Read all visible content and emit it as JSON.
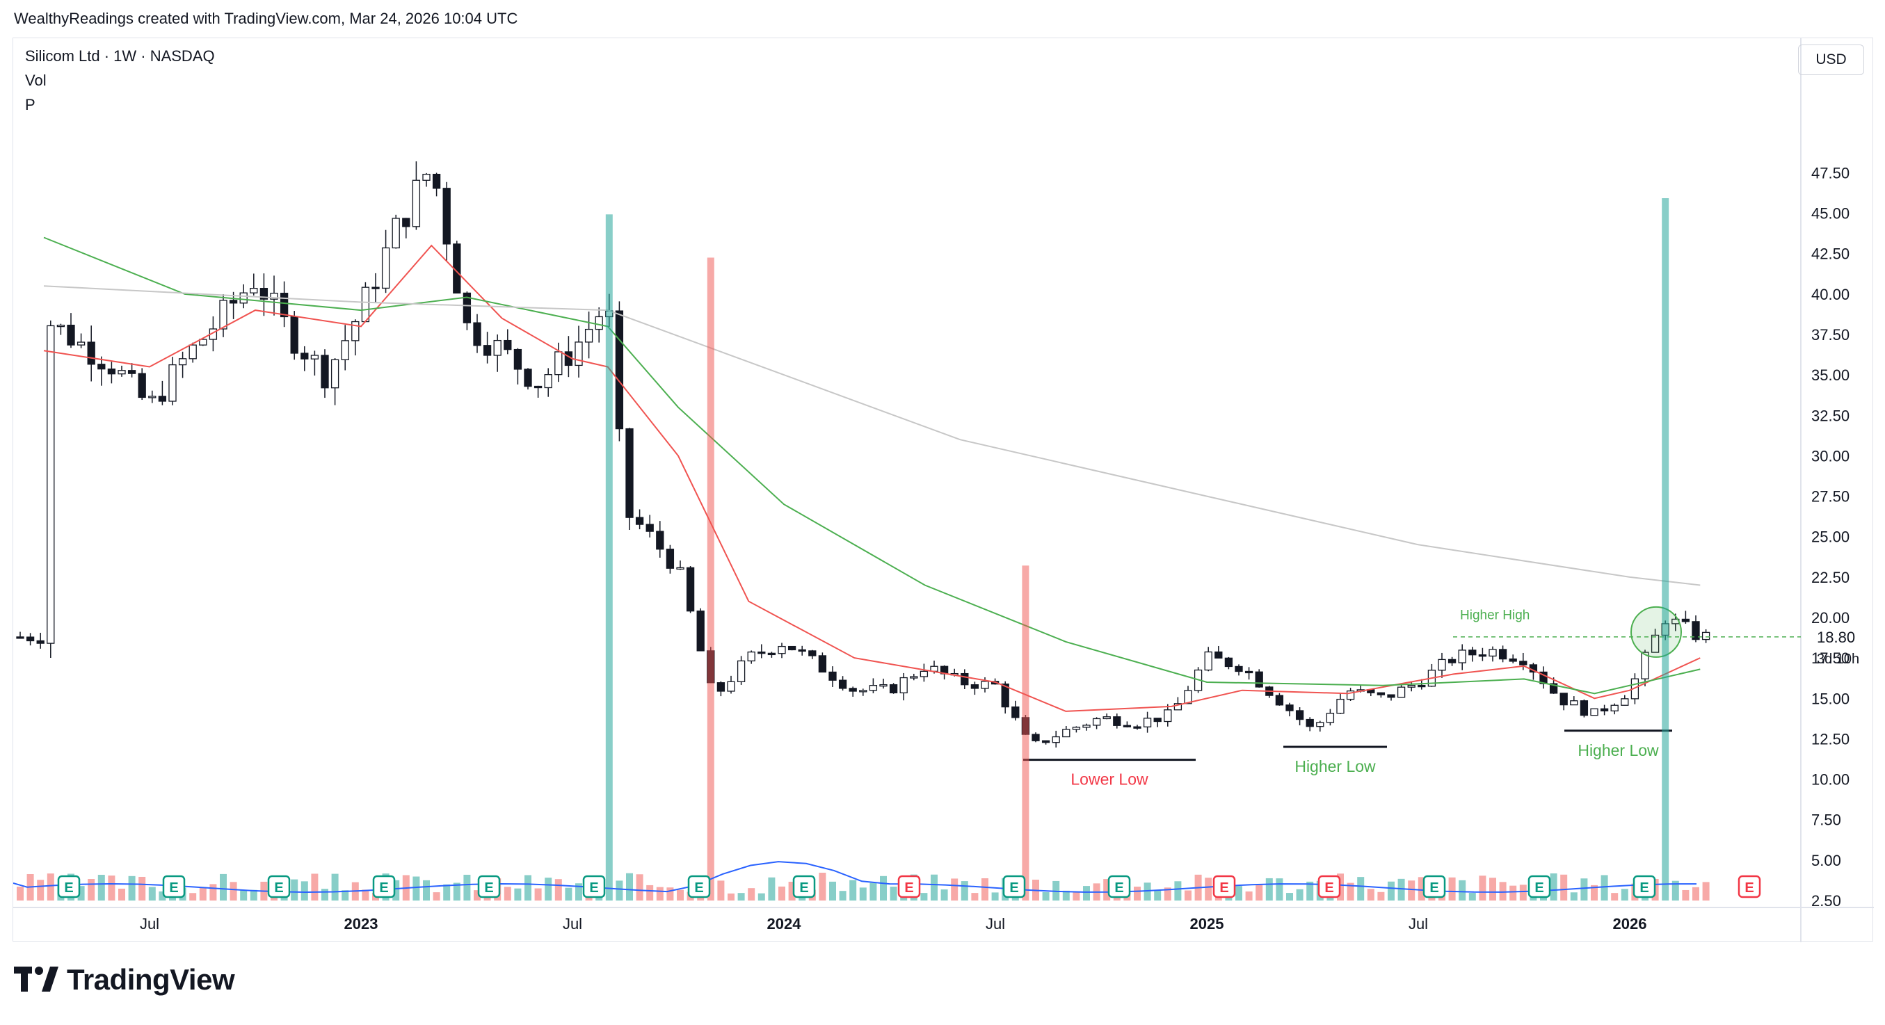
{
  "header": {
    "credit": "WealthyReadings created with TradingView.com, Mar 24, 2026 10:04 UTC"
  },
  "legend": {
    "symbol_line": "Silicom Ltd · 1W · NASDAQ",
    "vol_label": "Vol",
    "p_label": "P"
  },
  "currency": "USD",
  "footer": {
    "brand": "TradingView"
  },
  "colors": {
    "up": "#ffffff",
    "down": "#131722",
    "ema_fast": "#f05350",
    "ema_mid": "#4caf50",
    "ema_slow": "#c7c7c7",
    "vol_up": "#26a69a",
    "vol_down": "#ef5350",
    "vol_ma": "#2962ff",
    "earn_green": "#089981",
    "earn_red": "#f23645",
    "annotation_black": "#131722",
    "annotation_red": "#f23645",
    "annotation_green": "#4caf50"
  },
  "chart_data": {
    "type": "candlestick",
    "title": "Silicom Ltd · 1W · NASDAQ",
    "y_axis": {
      "min": 0,
      "max": 50,
      "ticks": [
        "2.50",
        "5.00",
        "7.50",
        "10.00",
        "12.50",
        "15.00",
        "17.50",
        "20.00",
        "22.50",
        "25.00",
        "27.50",
        "30.00",
        "32.50",
        "35.00",
        "37.50",
        "40.00",
        "42.50",
        "45.00",
        "47.50"
      ]
    },
    "x_axis": {
      "labels": [
        "Jul",
        "2023",
        "Jul",
        "2024",
        "Jul",
        "2025",
        "Jul",
        "2026"
      ],
      "label_dates": [
        "2022-07",
        "2023-01",
        "2023-07",
        "2024-01",
        "2024-07",
        "2025-01",
        "2025-07",
        "2026-01"
      ]
    },
    "last_price": "18.80",
    "countdown": "3d 10h",
    "series": [
      {
        "name": "price_close_path",
        "points": [
          [
            "2022-04",
            38.5
          ],
          [
            "2022-05",
            37.0
          ],
          [
            "2022-06",
            35.5
          ],
          [
            "2022-07",
            33.0
          ],
          [
            "2022-08",
            36.0
          ],
          [
            "2022-09",
            38.5
          ],
          [
            "2022-10",
            41.0
          ],
          [
            "2022-11",
            37.5
          ],
          [
            "2022-12",
            35.0
          ],
          [
            "2023-01",
            39.0
          ],
          [
            "2023-02",
            44.0
          ],
          [
            "2023-03",
            48.0
          ],
          [
            "2023-04",
            38.0
          ],
          [
            "2023-05",
            36.5
          ],
          [
            "2023-06",
            34.5
          ],
          [
            "2023-07",
            36.5
          ],
          [
            "2023-08",
            39.5
          ],
          [
            "2023-08b",
            26.5
          ],
          [
            "2023-09",
            25.5
          ],
          [
            "2023-10",
            23.0
          ],
          [
            "2023-11",
            15.0
          ],
          [
            "2023-12",
            17.5
          ],
          [
            "2024-01",
            18.5
          ],
          [
            "2024-02",
            17.0
          ],
          [
            "2024-03",
            15.5
          ],
          [
            "2024-04",
            15.5
          ],
          [
            "2024-05",
            17.0
          ],
          [
            "2024-06",
            16.0
          ],
          [
            "2024-07",
            15.8
          ],
          [
            "2024-08",
            12.0
          ],
          [
            "2024-09",
            13.0
          ],
          [
            "2024-10",
            13.8
          ],
          [
            "2024-11",
            13.5
          ],
          [
            "2024-12",
            14.0
          ],
          [
            "2025-01",
            17.5
          ],
          [
            "2025-02",
            17.0
          ],
          [
            "2025-03",
            15.0
          ],
          [
            "2025-04",
            13.0
          ],
          [
            "2025-05",
            15.5
          ],
          [
            "2025-06",
            15.0
          ],
          [
            "2025-07",
            16.0
          ],
          [
            "2025-08",
            17.5
          ],
          [
            "2025-09",
            18.0
          ],
          [
            "2025-10",
            17.5
          ],
          [
            "2025-11",
            15.0
          ],
          [
            "2025-12",
            14.0
          ],
          [
            "2026-01",
            15.5
          ],
          [
            "2026-02",
            20.0
          ],
          [
            "2026-03",
            18.8
          ]
        ]
      },
      {
        "name": "ema_fast",
        "points": [
          [
            "2022-04",
            36.5
          ],
          [
            "2022-07",
            35.5
          ],
          [
            "2022-10",
            39.0
          ],
          [
            "2023-01",
            38.0
          ],
          [
            "2023-03",
            43.0
          ],
          [
            "2023-05",
            38.5
          ],
          [
            "2023-07",
            36.0
          ],
          [
            "2023-08",
            35.5
          ],
          [
            "2023-10",
            30.0
          ],
          [
            "2023-12",
            21.0
          ],
          [
            "2024-03",
            17.5
          ],
          [
            "2024-07",
            16.0
          ],
          [
            "2024-09",
            14.2
          ],
          [
            "2024-12",
            14.5
          ],
          [
            "2025-02",
            15.5
          ],
          [
            "2025-05",
            15.3
          ],
          [
            "2025-08",
            16.5
          ],
          [
            "2025-10",
            17.0
          ],
          [
            "2025-12",
            15.0
          ],
          [
            "2026-01",
            15.5
          ],
          [
            "2026-03",
            17.5
          ]
        ]
      },
      {
        "name": "ema_mid",
        "points": [
          [
            "2022-04",
            43.5
          ],
          [
            "2022-08",
            40.0
          ],
          [
            "2023-01",
            39.0
          ],
          [
            "2023-04",
            39.8
          ],
          [
            "2023-08",
            38.0
          ],
          [
            "2023-10",
            33.0
          ],
          [
            "2024-01",
            27.0
          ],
          [
            "2024-05",
            22.0
          ],
          [
            "2024-09",
            18.5
          ],
          [
            "2025-01",
            16.0
          ],
          [
            "2025-06",
            15.8
          ],
          [
            "2025-10",
            16.2
          ],
          [
            "2025-12",
            15.3
          ],
          [
            "2026-03",
            16.8
          ]
        ]
      },
      {
        "name": "ema_slow",
        "points": [
          [
            "2022-04",
            40.5
          ],
          [
            "2023-01",
            39.5
          ],
          [
            "2023-08",
            39.0
          ],
          [
            "2024-01",
            35.0
          ],
          [
            "2024-06",
            31.0
          ],
          [
            "2025-01",
            27.5
          ],
          [
            "2025-07",
            24.5
          ],
          [
            "2026-01",
            22.5
          ],
          [
            "2026-03",
            22.0
          ]
        ]
      }
    ],
    "volume": {
      "baseline_note": "relative heights",
      "spikes": [
        [
          "2023-08",
          12.7
        ],
        [
          "2023-11",
          11.9
        ],
        [
          "2024-08",
          6.2
        ],
        [
          "2026-02",
          13.0
        ]
      ]
    },
    "annotations": [
      {
        "text": "Lower Low",
        "date": "2024-10",
        "price": 11.2,
        "color": "red"
      },
      {
        "text": "Higher Low",
        "date": "2025-04",
        "price": 12.0,
        "color": "green"
      },
      {
        "text": "Higher Low",
        "date": "2025-12",
        "price": 13.0,
        "color": "green"
      },
      {
        "text": "Higher High",
        "date": "2025-09",
        "price": 18.8,
        "color": "green"
      }
    ],
    "earnings_markers": [
      "E",
      "E",
      "E",
      "E",
      "E",
      "E",
      "E",
      "E",
      "E",
      "E",
      "E",
      "E",
      "E",
      "E",
      "E",
      "E",
      "E"
    ]
  }
}
